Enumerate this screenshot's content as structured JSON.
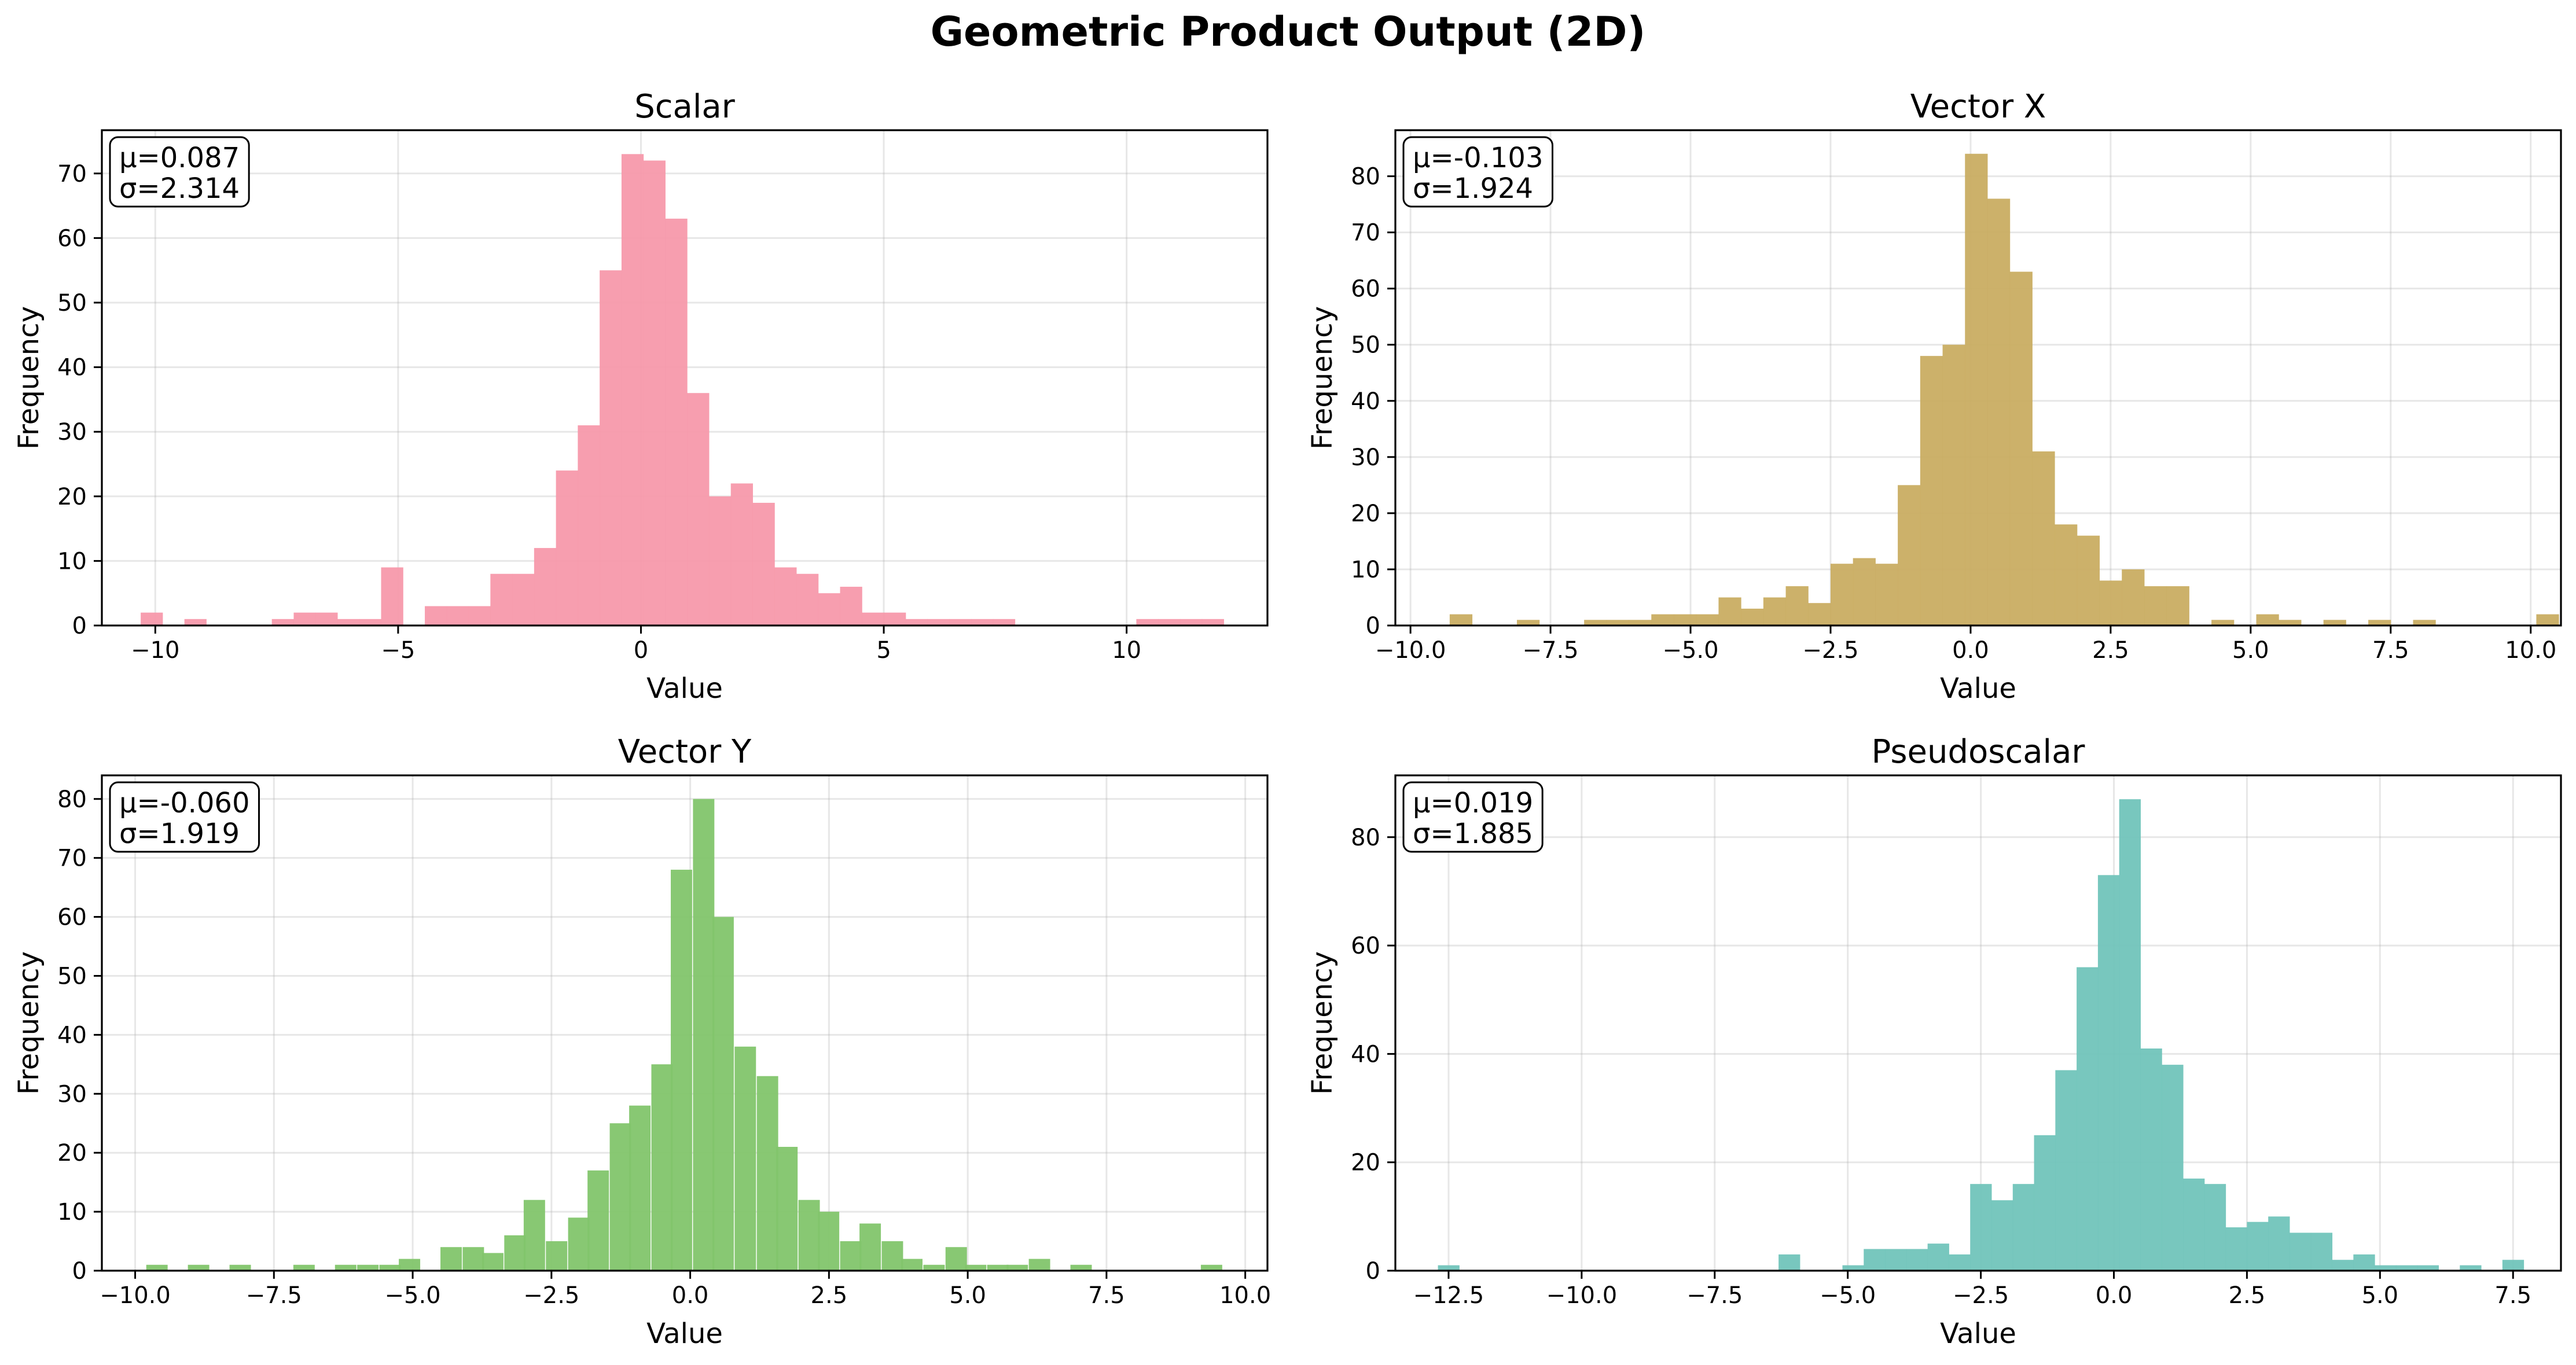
{
  "figure_title": "Geometric Product Output (2D)",
  "chart_data": [
    {
      "type": "bar",
      "subtype": "histogram",
      "title": "Scalar",
      "xlabel": "Value",
      "ylabel": "Frequency",
      "color": "#f799ab",
      "xlim": [
        -11.1,
        12.9
      ],
      "ylim": [
        0,
        76.7
      ],
      "xticks": [
        -10,
        -5,
        0,
        5,
        10
      ],
      "xtick_labels": [
        "−10",
        "−5",
        "0",
        "5",
        "10"
      ],
      "yticks": [
        0,
        10,
        20,
        30,
        40,
        50,
        60,
        70
      ],
      "grid": true,
      "stats_box": {
        "mean": "μ=0.087",
        "std": "σ=2.314",
        "position": "top-left"
      },
      "bins": [
        [
          -10.3,
          2
        ],
        [
          -9.4,
          1
        ],
        [
          -7.6,
          1
        ],
        [
          -7.15,
          2
        ],
        [
          -6.7,
          2
        ],
        [
          -6.25,
          1
        ],
        [
          -5.8,
          1
        ],
        [
          -5.35,
          9
        ],
        [
          -4.45,
          3
        ],
        [
          -4.0,
          3
        ],
        [
          -3.55,
          3
        ],
        [
          -3.1,
          8
        ],
        [
          -2.65,
          8
        ],
        [
          -2.2,
          12
        ],
        [
          -1.75,
          24
        ],
        [
          -1.3,
          31
        ],
        [
          -0.85,
          55
        ],
        [
          -0.4,
          73
        ],
        [
          0.05,
          72
        ],
        [
          0.5,
          63
        ],
        [
          0.95,
          36
        ],
        [
          1.4,
          20
        ],
        [
          1.85,
          22
        ],
        [
          2.3,
          19
        ],
        [
          2.75,
          9
        ],
        [
          3.2,
          8
        ],
        [
          3.65,
          5
        ],
        [
          4.1,
          6
        ],
        [
          4.55,
          2
        ],
        [
          5.0,
          2
        ],
        [
          5.45,
          1
        ],
        [
          5.9,
          1
        ],
        [
          6.35,
          1
        ],
        [
          6.8,
          1
        ],
        [
          7.25,
          1
        ],
        [
          10.2,
          1
        ],
        [
          10.65,
          1
        ],
        [
          11.1,
          1
        ],
        [
          11.55,
          1
        ]
      ],
      "bin_width": 0.45
    },
    {
      "type": "bar",
      "subtype": "histogram",
      "title": "Vector X",
      "xlabel": "Value",
      "ylabel": "Frequency",
      "color": "#c9ad62",
      "xlim": [
        -10.27,
        10.54
      ],
      "ylim": [
        0,
        88.2
      ],
      "xticks": [
        -10,
        -7.5,
        -5,
        -2.5,
        0,
        2.5,
        5,
        7.5,
        10
      ],
      "xtick_labels": [
        "−10.0",
        "−7.5",
        "−5.0",
        "−2.5",
        "0.0",
        "2.5",
        "5.0",
        "7.5",
        "10.0"
      ],
      "yticks": [
        0,
        10,
        20,
        30,
        40,
        50,
        60,
        70,
        80
      ],
      "grid": true,
      "stats_box": {
        "mean": "μ=-0.103",
        "std": "σ=1.924",
        "position": "top-left"
      },
      "bins": [
        [
          -9.3,
          2
        ],
        [
          -8.1,
          1
        ],
        [
          -6.9,
          1
        ],
        [
          -6.5,
          1
        ],
        [
          -6.1,
          1
        ],
        [
          -5.7,
          2
        ],
        [
          -5.3,
          2
        ],
        [
          -4.9,
          2
        ],
        [
          -4.5,
          5
        ],
        [
          -4.1,
          3
        ],
        [
          -3.7,
          5
        ],
        [
          -3.3,
          7
        ],
        [
          -2.9,
          4
        ],
        [
          -2.5,
          11
        ],
        [
          -2.1,
          12
        ],
        [
          -1.7,
          11
        ],
        [
          -1.3,
          25
        ],
        [
          -0.9,
          48
        ],
        [
          -0.5,
          50
        ],
        [
          -0.1,
          84
        ],
        [
          0.3,
          76
        ],
        [
          0.7,
          63
        ],
        [
          1.1,
          31
        ],
        [
          1.5,
          18
        ],
        [
          1.9,
          16
        ],
        [
          2.3,
          8
        ],
        [
          2.7,
          10
        ],
        [
          3.1,
          7
        ],
        [
          3.5,
          7
        ],
        [
          4.3,
          1
        ],
        [
          5.1,
          2
        ],
        [
          5.5,
          1
        ],
        [
          6.3,
          1
        ],
        [
          7.1,
          1
        ],
        [
          7.9,
          1
        ],
        [
          10.1,
          2
        ]
      ],
      "bin_width": 0.4
    },
    {
      "type": "bar",
      "subtype": "histogram",
      "title": "Vector Y",
      "xlabel": "Value",
      "ylabel": "Frequency",
      "color": "#82c56b",
      "xlim": [
        -10.6,
        10.4
      ],
      "ylim": [
        0,
        84.0
      ],
      "xticks": [
        -10,
        -7.5,
        -5,
        -2.5,
        0,
        2.5,
        5,
        7.5,
        10
      ],
      "xtick_labels": [
        "−10.0",
        "−7.5",
        "−5.0",
        "−2.5",
        "0.0",
        "2.5",
        "5.0",
        "7.5",
        "10.0"
      ],
      "yticks": [
        0,
        10,
        20,
        30,
        40,
        50,
        60,
        70,
        80
      ],
      "grid": true,
      "stats_box": {
        "mean": "μ=-0.060",
        "std": "σ=1.919",
        "position": "top-left"
      },
      "bins": [
        [
          -9.8,
          1
        ],
        [
          -9.05,
          1
        ],
        [
          -8.3,
          1
        ],
        [
          -7.15,
          1
        ],
        [
          -6.4,
          1
        ],
        [
          -6.0,
          1
        ],
        [
          -5.6,
          1
        ],
        [
          -5.25,
          2
        ],
        [
          -4.5,
          4
        ],
        [
          -4.1,
          4
        ],
        [
          -3.75,
          3
        ],
        [
          -3.35,
          6
        ],
        [
          -3.0,
          12
        ],
        [
          -2.6,
          5
        ],
        [
          -2.2,
          9
        ],
        [
          -1.85,
          17
        ],
        [
          -1.45,
          25
        ],
        [
          -1.1,
          28
        ],
        [
          -0.7,
          35
        ],
        [
          -0.35,
          68
        ],
        [
          0.05,
          80
        ],
        [
          0.4,
          60
        ],
        [
          0.8,
          38
        ],
        [
          1.2,
          33
        ],
        [
          1.55,
          21
        ],
        [
          1.95,
          12
        ],
        [
          2.3,
          10
        ],
        [
          2.7,
          5
        ],
        [
          3.05,
          8
        ],
        [
          3.45,
          5
        ],
        [
          3.8,
          2
        ],
        [
          4.2,
          1
        ],
        [
          4.6,
          4
        ],
        [
          4.95,
          1
        ],
        [
          5.35,
          1
        ],
        [
          5.7,
          1
        ],
        [
          6.1,
          2
        ],
        [
          6.85,
          1
        ],
        [
          9.2,
          1
        ]
      ],
      "bin_width": 0.38
    },
    {
      "type": "bar",
      "subtype": "histogram",
      "title": "Pseudoscalar",
      "xlabel": "Value",
      "ylabel": "Frequency",
      "color": "#71c4bb",
      "xlim": [
        -13.5,
        8.4
      ],
      "ylim": [
        0,
        91.4
      ],
      "xticks": [
        -12.5,
        -10,
        -7.5,
        -5,
        -2.5,
        0,
        2.5,
        5,
        7.5
      ],
      "xtick_labels": [
        "−12.5",
        "−10.0",
        "−7.5",
        "−5.0",
        "−2.5",
        "0.0",
        "2.5",
        "5.0",
        "7.5"
      ],
      "yticks": [
        0,
        20,
        40,
        60,
        80
      ],
      "grid": true,
      "stats_box": {
        "mean": "μ=0.019",
        "std": "σ=1.885",
        "position": "top-left"
      },
      "bins": [
        [
          -12.7,
          1
        ],
        [
          -6.3,
          3
        ],
        [
          -5.1,
          1
        ],
        [
          -4.7,
          4
        ],
        [
          -4.3,
          4
        ],
        [
          -3.9,
          4
        ],
        [
          -3.5,
          5
        ],
        [
          -3.1,
          3
        ],
        [
          -2.7,
          16
        ],
        [
          -2.3,
          13
        ],
        [
          -1.9,
          16
        ],
        [
          -1.5,
          25
        ],
        [
          -1.1,
          37
        ],
        [
          -0.7,
          56
        ],
        [
          -0.3,
          73
        ],
        [
          0.1,
          87
        ],
        [
          0.5,
          41
        ],
        [
          0.9,
          38
        ],
        [
          1.3,
          17
        ],
        [
          1.7,
          16
        ],
        [
          2.1,
          8
        ],
        [
          2.5,
          9
        ],
        [
          2.9,
          10
        ],
        [
          3.3,
          7
        ],
        [
          3.7,
          7
        ],
        [
          4.1,
          2
        ],
        [
          4.5,
          3
        ],
        [
          4.9,
          1
        ],
        [
          5.3,
          1
        ],
        [
          5.7,
          1
        ],
        [
          6.5,
          1
        ],
        [
          7.3,
          2
        ]
      ],
      "bin_width": 0.4
    }
  ]
}
